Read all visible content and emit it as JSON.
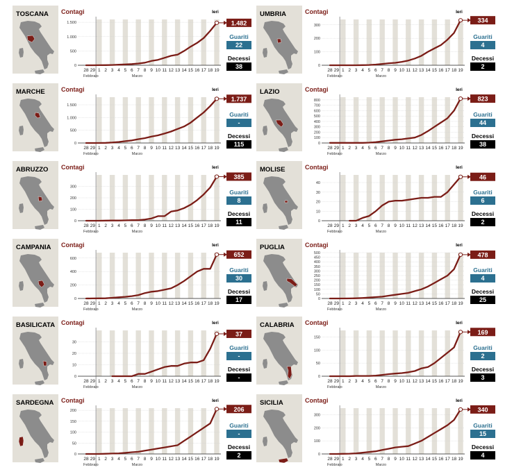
{
  "labels": {
    "contagi": "Contagi",
    "ieri": "Ieri",
    "guariti": "Guariti",
    "decessi": "Decessi",
    "febbraio": "Febbraio",
    "marzo": "Marzo"
  },
  "x_ticks": [
    "28",
    "29",
    "1",
    "2",
    "3",
    "4",
    "5",
    "6",
    "7",
    "8",
    "9",
    "10",
    "11",
    "12",
    "13",
    "14",
    "15",
    "16",
    "17",
    "18",
    "19"
  ],
  "colors": {
    "contagi": "#7b1d17",
    "guariti": "#2c7090",
    "decessi": "#000000",
    "stripe": "#e3e0d8",
    "map_bg": "#e3e0d8",
    "italy": "#8c8c8c"
  },
  "chart_data": [
    {
      "type": "line",
      "region": "TOSCANA",
      "ylim": [
        0,
        1600
      ],
      "yticks": [
        0,
        500,
        1000,
        1500
      ],
      "ytick_labels": [
        "0",
        "500",
        "1.000",
        "1.500"
      ],
      "values": [
        0,
        0,
        2,
        5,
        10,
        19,
        30,
        40,
        60,
        90,
        150,
        190,
        260,
        330,
        370,
        500,
        650,
        780,
        950,
        1200,
        1482
      ],
      "contagi_label": "1.482",
      "guariti": "22",
      "decessi": "38"
    },
    {
      "type": "line",
      "region": "UMBRIA",
      "ylim": [
        0,
        340
      ],
      "yticks": [
        0,
        100,
        200,
        300
      ],
      "ytick_labels": [
        "0",
        "100",
        "200",
        "300"
      ],
      "values": [
        0,
        0,
        0,
        0,
        0,
        1,
        2,
        5,
        10,
        15,
        18,
        25,
        35,
        50,
        70,
        100,
        125,
        150,
        190,
        240,
        334
      ],
      "contagi_label": "334",
      "guariti": "4",
      "decessi": "2"
    },
    {
      "type": "line",
      "region": "MARCHE",
      "ylim": [
        0,
        1800
      ],
      "yticks": [
        0,
        500,
        1000,
        1500
      ],
      "ytick_labels": [
        "0",
        "500",
        "1.000",
        "1.500"
      ],
      "values": [
        0,
        0,
        1,
        5,
        20,
        40,
        70,
        100,
        150,
        190,
        250,
        300,
        370,
        450,
        550,
        650,
        800,
        1000,
        1200,
        1450,
        1737
      ],
      "contagi_label": "1.737",
      "guariti": "-",
      "decessi": "115"
    },
    {
      "type": "line",
      "region": "LAZIO",
      "ylim": [
        0,
        850
      ],
      "yticks": [
        0,
        100,
        200,
        300,
        400,
        500,
        600,
        700,
        800
      ],
      "ytick_labels": [
        "0",
        "100",
        "200",
        "300",
        "400",
        "500",
        "600",
        "700",
        "800"
      ],
      "values": [
        2,
        3,
        3,
        3,
        3,
        3,
        6,
        15,
        30,
        45,
        60,
        70,
        85,
        100,
        150,
        220,
        300,
        380,
        460,
        600,
        823
      ],
      "contagi_label": "823",
      "guariti": "44",
      "decessi": "38"
    },
    {
      "type": "line",
      "region": "ABRUZZO",
      "ylim": [
        0,
        400
      ],
      "yticks": [
        0,
        100,
        200,
        300
      ],
      "ytick_labels": [
        "0",
        "100",
        "200",
        "300"
      ],
      "values": [
        0,
        0,
        0,
        1,
        2,
        2,
        3,
        5,
        5,
        10,
        20,
        40,
        40,
        80,
        90,
        110,
        140,
        180,
        230,
        290,
        385
      ],
      "contagi_label": "385",
      "guariti": "8",
      "decessi": "11"
    },
    {
      "type": "line",
      "region": "MOLISE",
      "ylim": [
        0,
        48
      ],
      "yticks": [
        0,
        10,
        20,
        30,
        40
      ],
      "ytick_labels": [
        "0",
        "10",
        "20",
        "30",
        "40"
      ],
      "values": [
        null,
        null,
        null,
        0,
        0,
        3,
        5,
        10,
        16,
        20,
        21,
        21,
        22,
        23,
        24,
        24,
        25,
        25,
        30,
        38,
        46
      ],
      "contagi_label": "46",
      "guariti": "6",
      "decessi": "2"
    },
    {
      "type": "line",
      "region": "CAMPANIA",
      "ylim": [
        0,
        680
      ],
      "yticks": [
        0,
        200,
        400,
        600
      ],
      "ytick_labels": [
        "0",
        "200",
        "400",
        "600"
      ],
      "values": [
        0,
        1,
        2,
        3,
        10,
        17,
        25,
        35,
        50,
        80,
        100,
        110,
        130,
        150,
        200,
        260,
        330,
        400,
        440,
        440,
        652
      ],
      "contagi_label": "652",
      "guariti": "30",
      "decessi": "17"
    },
    {
      "type": "line",
      "region": "PUGLIA",
      "ylim": [
        0,
        500
      ],
      "yticks": [
        0,
        50,
        100,
        150,
        200,
        250,
        300,
        350,
        400,
        450,
        500
      ],
      "ytick_labels": [
        "0",
        "50",
        "100",
        "150",
        "200",
        "250",
        "300",
        "350",
        "400",
        "450",
        "500"
      ],
      "values": [
        0,
        0,
        0,
        1,
        2,
        5,
        10,
        15,
        20,
        30,
        40,
        50,
        60,
        80,
        100,
        130,
        170,
        210,
        250,
        320,
        478
      ],
      "contagi_label": "478",
      "guariti": "4",
      "decessi": "25"
    },
    {
      "type": "line",
      "region": "BASILICATA",
      "ylim": [
        0,
        40
      ],
      "yticks": [
        0,
        10,
        20,
        30
      ],
      "ytick_labels": [
        "0",
        "10",
        "20",
        "30"
      ],
      "values": [
        null,
        null,
        null,
        null,
        0,
        0,
        0,
        0,
        2,
        2,
        4,
        6,
        8,
        9,
        9,
        11,
        12,
        12,
        14,
        24,
        37
      ],
      "contagi_label": "37",
      "guariti": "-",
      "decessi": "-"
    },
    {
      "type": "line",
      "region": "CALABRIA",
      "ylim": [
        0,
        175
      ],
      "yticks": [
        0,
        50,
        100,
        150
      ],
      "ytick_labels": [
        "0",
        "50",
        "100",
        "150"
      ],
      "values": [
        0,
        0,
        0,
        0,
        1,
        1,
        1,
        2,
        5,
        8,
        10,
        12,
        15,
        20,
        30,
        35,
        50,
        70,
        90,
        110,
        169
      ],
      "contagi_label": "169",
      "guariti": "2",
      "decessi": "3"
    },
    {
      "type": "line",
      "region": "SARDEGNA",
      "ylim": [
        0,
        210
      ],
      "yticks": [
        0,
        50,
        100,
        150,
        200
      ],
      "ytick_labels": [
        "0",
        "50",
        "100",
        "150",
        "200"
      ],
      "values": [
        0,
        0,
        0,
        1,
        2,
        3,
        5,
        8,
        10,
        15,
        20,
        25,
        30,
        35,
        40,
        60,
        80,
        100,
        120,
        140,
        206
      ],
      "contagi_label": "206",
      "guariti": "-",
      "decessi": "2"
    },
    {
      "type": "line",
      "region": "SICILIA",
      "ylim": [
        0,
        350
      ],
      "yticks": [
        0,
        100,
        200,
        300
      ],
      "ytick_labels": [
        "0",
        "100",
        "200",
        "300"
      ],
      "values": [
        0,
        0,
        1,
        2,
        5,
        10,
        15,
        20,
        30,
        40,
        50,
        55,
        60,
        80,
        100,
        130,
        160,
        190,
        220,
        260,
        340
      ],
      "contagi_label": "340",
      "guariti": "15",
      "decessi": "4"
    }
  ]
}
